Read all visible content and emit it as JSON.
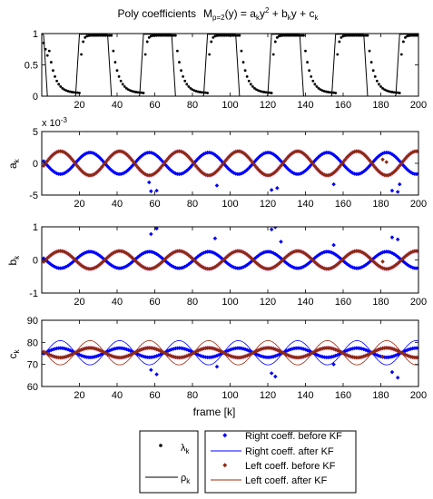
{
  "title": {
    "prefix": "Poly coefficients",
    "M": "M",
    "Msub": "p=2",
    "arg": "(y) = a",
    "asub": "k",
    "y2": "y",
    "sup2": "2",
    "plusb": " + b",
    "bsub": "k",
    "yplus": "y + c",
    "csub": "k"
  },
  "colors": {
    "right": "#0000ff",
    "left": "#a0280a",
    "left_marker": "#8b2a12",
    "glow": "#ffc8ff",
    "black": "#000000"
  },
  "chart_data": [
    {
      "type": "scatter",
      "name": "lambda_rho",
      "xlim": [
        0,
        200
      ],
      "ylim": [
        0,
        1
      ],
      "xticks": [
        "20",
        "40",
        "60",
        "80",
        "100",
        "120",
        "140",
        "160",
        "180",
        "200"
      ],
      "yticks": [
        "0",
        "0.5",
        "1"
      ],
      "ylabel": "",
      "period": 34,
      "lambda_low": 0.05,
      "lambda_high": 0.97,
      "rho_low": 0.0,
      "rho_high": 0.99,
      "series": [
        {
          "name": "λk",
          "role": "lambda",
          "marker": "dot"
        },
        {
          "name": "ρk",
          "role": "rho",
          "marker": "line"
        }
      ]
    },
    {
      "type": "scatter",
      "name": "a_k",
      "xlim": [
        0,
        200
      ],
      "ylim": [
        -5,
        5
      ],
      "xticks": [
        "20",
        "40",
        "60",
        "80",
        "100",
        "120",
        "140",
        "160",
        "180",
        "200"
      ],
      "yticks": [
        "5",
        "0",
        "-5"
      ],
      "ylabel": "a",
      "ylabel_sub": "k",
      "exponent": "x 10",
      "exponent_power": "-3",
      "period": 31.5,
      "right_amp": 1.7,
      "left_amp": 1.9,
      "after_amp": 1.8,
      "outliers_right": [
        [
          58,
          -4.4
        ],
        [
          61,
          -4.3
        ],
        [
          57,
          -3.0
        ],
        [
          93,
          -3.5
        ],
        [
          122,
          -4.2
        ],
        [
          125,
          -3.9
        ],
        [
          155,
          -3.3
        ],
        [
          186,
          -4.3
        ],
        [
          189,
          -4.5
        ],
        [
          190,
          -3.3
        ]
      ],
      "outliers_left": [
        [
          181,
          0.6
        ],
        [
          183,
          0.2
        ]
      ]
    },
    {
      "type": "scatter",
      "name": "b_k",
      "xlim": [
        0,
        200
      ],
      "ylim": [
        -1,
        1
      ],
      "xticks": [
        "20",
        "40",
        "60",
        "80",
        "100",
        "120",
        "140",
        "160",
        "180",
        "200"
      ],
      "yticks": [
        "1",
        "0",
        "-1"
      ],
      "ylabel": "b",
      "ylabel_sub": "k",
      "period": 31.5,
      "right_amp": 0.25,
      "left_amp": 0.27,
      "after_amp": 0.28,
      "outliers_right": [
        [
          58,
          0.78
        ],
        [
          61,
          0.95
        ],
        [
          92,
          0.65
        ],
        [
          122,
          0.92
        ],
        [
          124,
          0.99
        ],
        [
          127,
          0.55
        ],
        [
          155,
          0.45
        ],
        [
          186,
          0.68
        ],
        [
          189,
          0.62
        ]
      ],
      "outliers_left": [
        [
          181,
          -0.05
        ]
      ]
    },
    {
      "type": "scatter",
      "name": "c_k",
      "xlim": [
        0,
        200
      ],
      "ylim": [
        60,
        90
      ],
      "xticks": [
        "20",
        "40",
        "60",
        "80",
        "100",
        "120",
        "140",
        "160",
        "180",
        "200"
      ],
      "yticks": [
        "90",
        "80",
        "70",
        "60"
      ],
      "ylabel": "c",
      "ylabel_sub": "k",
      "xlabel": "frame [k]",
      "period": 31.5,
      "center": 75.3,
      "right_amp": 2.1,
      "left_amp": 2.2,
      "after_amp": 5.5,
      "outliers_right": [
        [
          58,
          67.5
        ],
        [
          61,
          65.5
        ],
        [
          93,
          69.0
        ],
        [
          122,
          66.0
        ],
        [
          124,
          64.5
        ],
        [
          155,
          70.0
        ],
        [
          186,
          66.5
        ],
        [
          189,
          64.0
        ]
      ],
      "outliers_left": [
        [
          181,
          73.5
        ]
      ]
    }
  ],
  "legend_left": {
    "lambda": "λ",
    "lambda_sub": "k",
    "rho": "ρ",
    "rho_sub": "k"
  },
  "legend_right": {
    "items": [
      "Right coeff. before KF",
      "Right coeff. after KF",
      "Left coeff. before KF",
      "Left coeff. after KF"
    ]
  }
}
